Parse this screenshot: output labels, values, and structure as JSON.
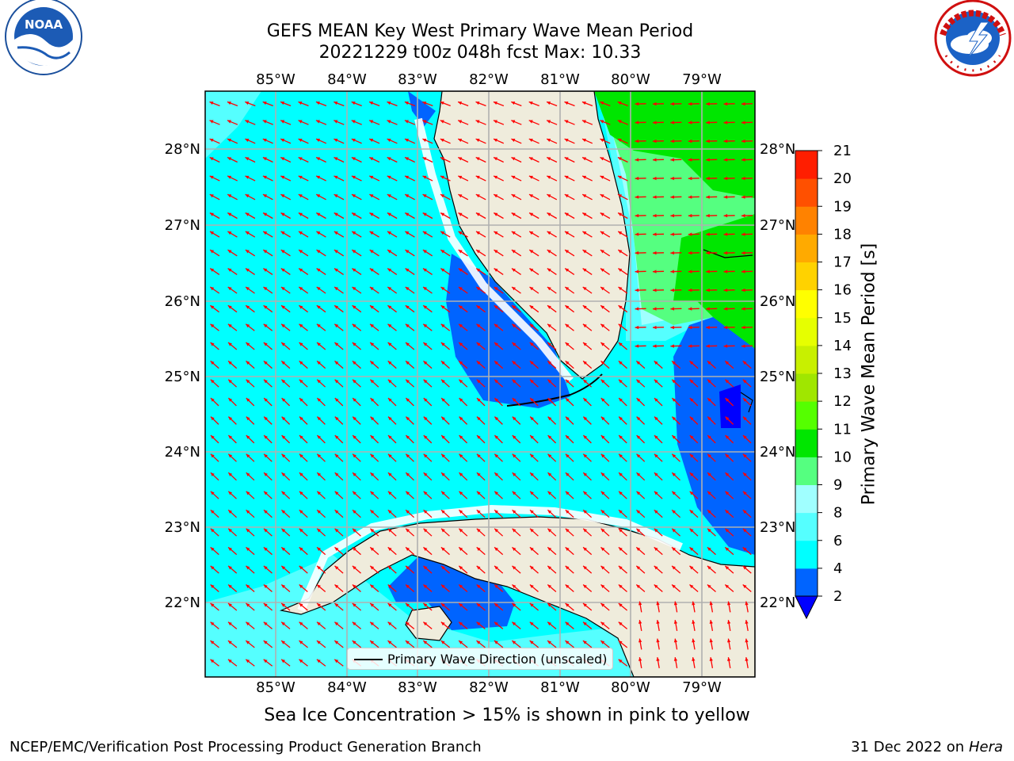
{
  "header": {
    "title_line1": "GEFS MEAN Key West Primary Wave Mean Period",
    "title_line2": "20221229 t00z 048h fcst   Max: 10.33"
  },
  "logos": {
    "noaa": {
      "text": "NOAA",
      "ring_text": "NATIONAL OCEANIC AND ATMOSPHERIC ADMINISTRATION · U.S. DEPARTMENT OF COMMERCE"
    },
    "nws": {
      "ring_text": "NATIONAL WEATHER SERVICE"
    }
  },
  "map": {
    "lon_labels": [
      "85°W",
      "84°W",
      "83°W",
      "82°W",
      "81°W",
      "80°W",
      "79°W"
    ],
    "lat_labels": [
      "28°N",
      "27°N",
      "26°N",
      "25°N",
      "24°N",
      "23°N",
      "22°N"
    ],
    "legend_label": "Primary Wave Direction (unscaled)",
    "wave_direction_color": "#ff0000",
    "land_color": "#efecdc",
    "ocean_base_color": "#00ffff"
  },
  "colorbar": {
    "label": "Primary Wave Mean Period [s]",
    "levels": [
      2,
      4,
      6,
      8,
      9,
      10,
      11,
      12,
      13,
      14,
      15,
      16,
      17,
      18,
      19,
      20,
      21
    ],
    "tick_labels": [
      "2",
      "4",
      "6",
      "8",
      "9",
      "10",
      "11",
      "12",
      "13",
      "14",
      "15",
      "16",
      "17",
      "18",
      "19",
      "20",
      "21"
    ],
    "colors": [
      "#0064ff",
      "#00ffff",
      "#55ffff",
      "#a0ffff",
      "#55ff80",
      "#00e600",
      "#55ff00",
      "#a0e600",
      "#c8f000",
      "#e6ff00",
      "#ffff00",
      "#ffd200",
      "#ffaa00",
      "#ff8200",
      "#ff5000",
      "#ff1e00"
    ],
    "under_color": "#0000ff"
  },
  "footer": {
    "ice_note": "Sea Ice Concentration > 15% is shown in pink to yellow",
    "credit_left": "NCEP/EMC/Verification Post Processing Product Generation Branch",
    "credit_date": "31 Dec 2022 on",
    "credit_host": "Hera"
  }
}
